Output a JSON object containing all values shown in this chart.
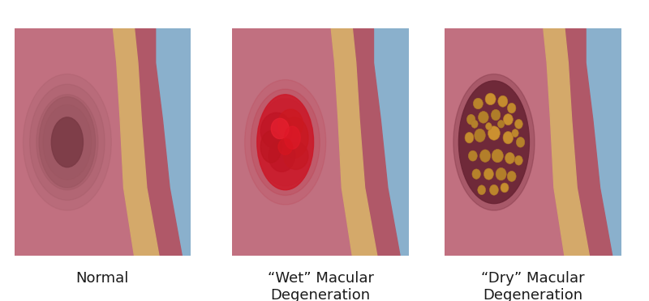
{
  "bg_color": "#ffffff",
  "panel_bg": "#c17080",
  "panel_border": "#1a1a1a",
  "choroid_color": "#d4a96a",
  "sclera_color": "#8ab0cc",
  "retina_right_color": "#b05868",
  "labels": [
    "Normal",
    "“Wet” Macular\nDegeneration",
    "“Dry” Macular\nDegeneration"
  ],
  "label_fontsize": 13,
  "normal_macula_outer": "#9a5560",
  "normal_macula_inner": "#7a3a45",
  "wet_base": "#c03040",
  "wet_bright": "#e01020",
  "wet_highlight": "#cc1818",
  "dry_spot_bg": "#6a2535",
  "dry_spot_shadow": "#7a3040",
  "dry_drusen_color": "#cc9445",
  "dry_drusen_light": "#daa855",
  "dry_drusen_border": "#b07828"
}
